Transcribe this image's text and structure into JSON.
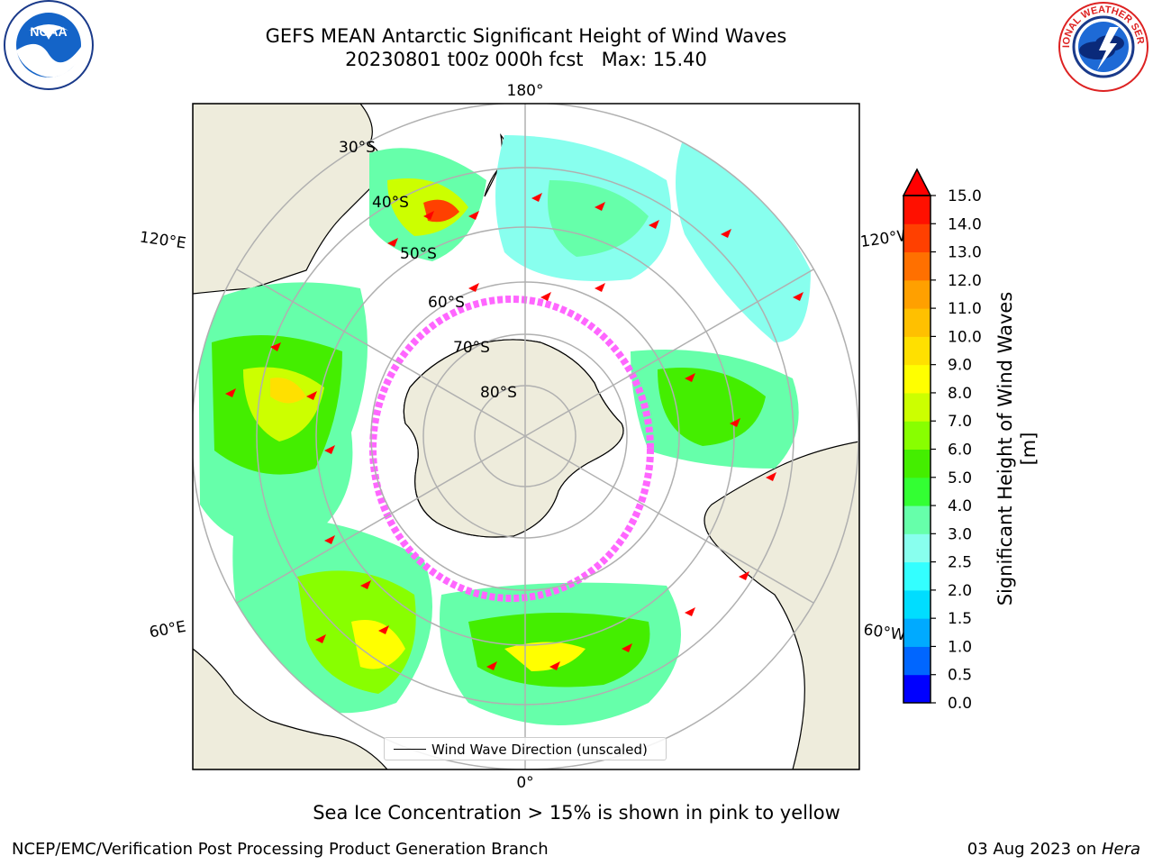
{
  "header": {
    "title_line1": "GEFS MEAN Antarctic Significant Height of Wind Waves",
    "title_line2": "20230801 t00z 000h fcst   Max: 15.40"
  },
  "logos": {
    "left": "NOAA",
    "left_ring_text": "NATIONAL OCEANIC AND ATMOSPHERIC ADMINISTRATION · U.S. DEPARTMENT OF COMMERCE",
    "right_ring_text": "NATIONAL WEATHER SERVICE"
  },
  "map": {
    "projection": "south polar stereographic",
    "longitude_labels": {
      "top": "180°",
      "bottom": "0°",
      "left_upper": "120°E",
      "left_lower": "60°E",
      "right_upper": "120°W",
      "right_lower": "60°W"
    },
    "latitude_labels": [
      "30°S",
      "40°S",
      "50°S",
      "60°S",
      "70°S",
      "80°S"
    ],
    "legend_label": "Wind Wave Direction (unscaled)",
    "colors": {
      "land": "#eeecdc",
      "ocean_missing": "#ffffff",
      "gridline": "#b0b0b0",
      "arrow": "#ff0000",
      "sea_ice": "#ff66ff"
    }
  },
  "colorbar": {
    "label": "Significant Height of Wind Waves [m]",
    "ticks": [
      "0.0",
      "0.5",
      "1.0",
      "1.5",
      "2.0",
      "2.5",
      "3.0",
      "4.0",
      "5.0",
      "6.0",
      "7.0",
      "8.0",
      "9.0",
      "10.0",
      "11.0",
      "12.0",
      "13.0",
      "14.0",
      "15.0"
    ],
    "colors": [
      "#0000ff",
      "#0066ff",
      "#00aaff",
      "#00ddff",
      "#33ffff",
      "#88ffee",
      "#66ffaa",
      "#33ff33",
      "#44ee00",
      "#88ff00",
      "#ccff00",
      "#ffff00",
      "#ffe000",
      "#ffc000",
      "#ffa000",
      "#ff7000",
      "#ff4000",
      "#ff1000"
    ],
    "extend_color": "#ff0000"
  },
  "chart_data": {
    "type": "heatmap",
    "title": "GEFS MEAN Antarctic Significant Height of Wind Waves",
    "subtitle": "20230801 t00z 000h fcst",
    "max_value": 15.4,
    "units": "m",
    "value_range": [
      0.0,
      15.0
    ]
  },
  "notes": {
    "sea_ice": "Sea Ice Concentration > 15% is shown in pink to yellow"
  },
  "footer": {
    "left": "NCEP/EMC/Verification Post Processing Product Generation Branch",
    "date": "03 Aug 2023 on ",
    "host": "Hera"
  }
}
